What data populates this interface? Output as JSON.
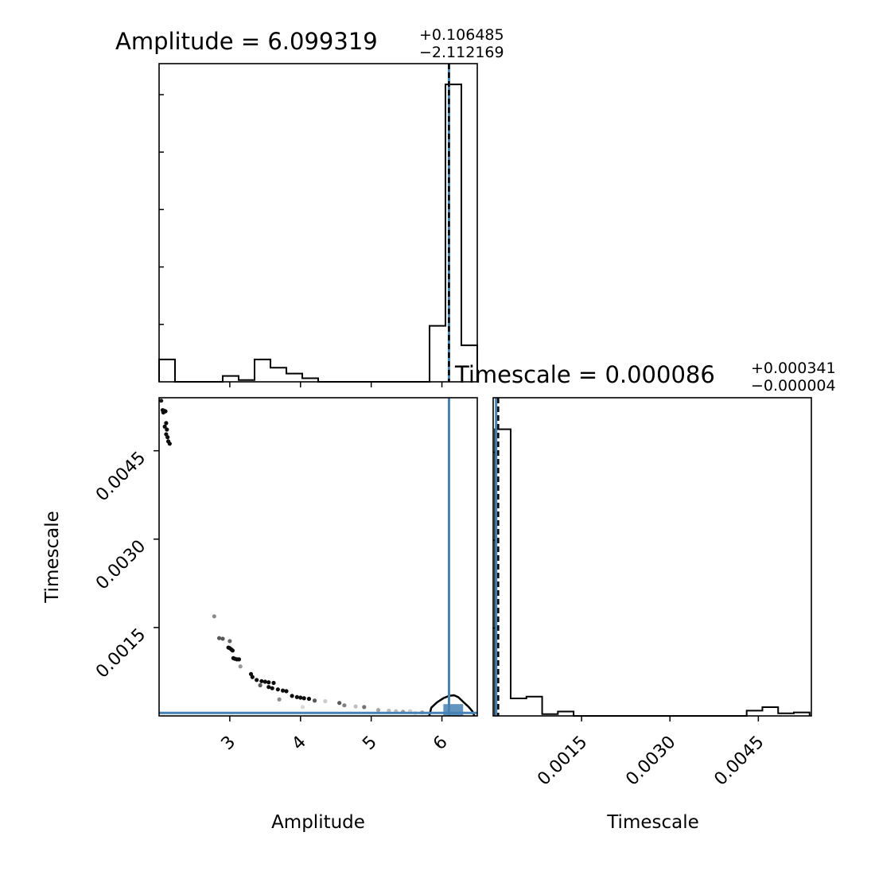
{
  "chart_data": {
    "type": "scatter",
    "figure": "corner-plot",
    "parameters": [
      "Amplitude",
      "Timescale"
    ],
    "colors": {
      "truth_line": "#4682b4",
      "histogram": "#000000",
      "quantile_line": "#000000",
      "frame": "#000000"
    },
    "amplitude_panel": {
      "title": {
        "prefix": "Amplitude = ",
        "value": "6.099319",
        "plus": "+0.106485",
        "minus": "−2.112169"
      },
      "xlim": [
        2.0,
        6.5
      ],
      "truth": 6.1,
      "median": 6.099319,
      "histogram": {
        "type": "step",
        "bin_edges": [
          2.0,
          2.225,
          2.45,
          2.675,
          2.9,
          3.125,
          3.35,
          3.575,
          3.8,
          4.025,
          4.25,
          4.475,
          4.7,
          4.925,
          5.15,
          5.375,
          5.6,
          5.825,
          6.05,
          6.275,
          6.5
        ],
        "counts": [
          0.38,
          0,
          0,
          0,
          0.1,
          0.03,
          0.38,
          0.24,
          0.14,
          0.06,
          0,
          0,
          0,
          0,
          0,
          0,
          0,
          0.95,
          5.05,
          0.62
        ]
      }
    },
    "timescale_panel": {
      "title": {
        "prefix": "Timescale = ",
        "value": "0.000086",
        "plus": "+0.000341",
        "minus": "−0.000004"
      },
      "xlim": [
        0.0,
        0.0054
      ],
      "x_ticks": [
        "0.0015",
        "0.0030",
        "0.0045"
      ],
      "xlabel": "Timescale",
      "truth": 5e-05,
      "median": 8.6e-05,
      "histogram": {
        "type": "step",
        "bin_edges": [
          3e-05,
          0.000297,
          0.000564,
          0.000831,
          0.001098,
          0.001365,
          0.001632,
          0.001899,
          0.002166,
          0.002433,
          0.0027,
          0.002967,
          0.003234,
          0.003501,
          0.003768,
          0.004035,
          0.004302,
          0.004569,
          0.004836,
          0.005103,
          0.00537
        ],
        "counts": [
          3.27,
          0.2,
          0.22,
          0.02,
          0.05,
          0,
          0,
          0,
          0,
          0,
          0,
          0,
          0,
          0,
          0,
          0,
          0.06,
          0.1,
          0.03,
          0.04
        ]
      }
    },
    "joint_panel": {
      "xlabel": "Amplitude",
      "ylabel": "Timescale",
      "xlim": [
        2.0,
        6.5
      ],
      "ylim": [
        0.0,
        0.0054
      ],
      "x_ticks": [
        "3",
        "4",
        "5",
        "6"
      ],
      "y_ticks": [
        "0.0015",
        "0.0030",
        "0.0045"
      ],
      "truth": {
        "x": 6.1,
        "y": 5e-05
      },
      "samples": [
        {
          "x": 2.03,
          "y": 0.00535,
          "shade": 0.1
        },
        {
          "x": 2.05,
          "y": 0.00519,
          "shade": 0.05
        },
        {
          "x": 2.07,
          "y": 0.00518,
          "shade": 0.05
        },
        {
          "x": 2.09,
          "y": 0.00517,
          "shade": 0.05
        },
        {
          "x": 2.06,
          "y": 0.00515,
          "shade": 0.05
        },
        {
          "x": 2.1,
          "y": 0.00497,
          "shade": 0.05
        },
        {
          "x": 2.08,
          "y": 0.00491,
          "shade": 0.05
        },
        {
          "x": 2.11,
          "y": 0.00486,
          "shade": 0.05
        },
        {
          "x": 2.1,
          "y": 0.00478,
          "shade": 0.05
        },
        {
          "x": 2.12,
          "y": 0.00473,
          "shade": 0.05
        },
        {
          "x": 2.13,
          "y": 0.00466,
          "shade": 0.05
        },
        {
          "x": 2.15,
          "y": 0.00462,
          "shade": 0.05
        },
        {
          "x": 2.78,
          "y": 0.00169,
          "shade": 0.55
        },
        {
          "x": 2.85,
          "y": 0.00132,
          "shade": 0.35
        },
        {
          "x": 2.9,
          "y": 0.00131,
          "shade": 0.35
        },
        {
          "x": 3.0,
          "y": 0.00127,
          "shade": 0.4
        },
        {
          "x": 2.98,
          "y": 0.00116,
          "shade": 0.05
        },
        {
          "x": 3.0,
          "y": 0.00115,
          "shade": 0.05
        },
        {
          "x": 3.02,
          "y": 0.00113,
          "shade": 0.05
        },
        {
          "x": 3.04,
          "y": 0.00111,
          "shade": 0.05
        },
        {
          "x": 3.05,
          "y": 0.00098,
          "shade": 0.05
        },
        {
          "x": 3.07,
          "y": 0.00097,
          "shade": 0.05
        },
        {
          "x": 3.1,
          "y": 0.00096,
          "shade": 0.05
        },
        {
          "x": 3.13,
          "y": 0.00096,
          "shade": 0.05
        },
        {
          "x": 3.15,
          "y": 0.00084,
          "shade": 0.6
        },
        {
          "x": 3.3,
          "y": 0.00071,
          "shade": 0.05
        },
        {
          "x": 3.32,
          "y": 0.00066,
          "shade": 0.05
        },
        {
          "x": 3.38,
          "y": 0.00061,
          "shade": 0.05
        },
        {
          "x": 3.45,
          "y": 0.00059,
          "shade": 0.05
        },
        {
          "x": 3.5,
          "y": 0.00058,
          "shade": 0.05
        },
        {
          "x": 3.55,
          "y": 0.00057,
          "shade": 0.05
        },
        {
          "x": 3.62,
          "y": 0.00056,
          "shade": 0.05
        },
        {
          "x": 3.43,
          "y": 0.00052,
          "shade": 0.35
        },
        {
          "x": 3.55,
          "y": 0.00049,
          "shade": 0.05
        },
        {
          "x": 3.6,
          "y": 0.00047,
          "shade": 0.05
        },
        {
          "x": 3.68,
          "y": 0.00045,
          "shade": 0.05
        },
        {
          "x": 3.75,
          "y": 0.00043,
          "shade": 0.05
        },
        {
          "x": 3.8,
          "y": 0.00042,
          "shade": 0.05
        },
        {
          "x": 3.88,
          "y": 0.00034,
          "shade": 0.05
        },
        {
          "x": 3.95,
          "y": 0.00032,
          "shade": 0.05
        },
        {
          "x": 4.0,
          "y": 0.00031,
          "shade": 0.05
        },
        {
          "x": 4.05,
          "y": 0.0003,
          "shade": 0.05
        },
        {
          "x": 4.12,
          "y": 0.00029,
          "shade": 0.05
        },
        {
          "x": 3.7,
          "y": 0.00028,
          "shade": 0.55
        },
        {
          "x": 4.03,
          "y": 0.00015,
          "shade": 0.85
        },
        {
          "x": 4.2,
          "y": 0.00026,
          "shade": 0.35
        },
        {
          "x": 4.35,
          "y": 0.00025,
          "shade": 0.8
        },
        {
          "x": 4.55,
          "y": 0.00022,
          "shade": 0.35
        },
        {
          "x": 4.62,
          "y": 0.00018,
          "shade": 0.5
        },
        {
          "x": 4.78,
          "y": 0.00016,
          "shade": 0.75
        },
        {
          "x": 4.9,
          "y": 0.00015,
          "shade": 0.45
        },
        {
          "x": 5.1,
          "y": 0.0001,
          "shade": 0.65
        },
        {
          "x": 5.25,
          "y": 9e-05,
          "shade": 0.75
        },
        {
          "x": 5.35,
          "y": 8e-05,
          "shade": 0.75
        },
        {
          "x": 5.45,
          "y": 7e-05,
          "shade": 0.6
        },
        {
          "x": 5.55,
          "y": 8e-05,
          "shade": 0.8
        },
        {
          "x": 5.62,
          "y": 5e-05,
          "shade": 0.85
        },
        {
          "x": 5.72,
          "y": 6e-05,
          "shade": 0.65
        }
      ],
      "contour": [
        [
          5.82,
          0.0
        ],
        [
          5.85,
          0.00014
        ],
        [
          5.93,
          0.00023
        ],
        [
          6.02,
          0.0003
        ],
        [
          6.1,
          0.00034
        ],
        [
          6.17,
          0.00035
        ],
        [
          6.23,
          0.00032
        ],
        [
          6.3,
          0.00024
        ],
        [
          6.38,
          0.00015
        ],
        [
          6.43,
          8e-05
        ],
        [
          6.46,
          0.0
        ]
      ],
      "density_core": {
        "x_range": [
          6.02,
          6.3
        ],
        "y_range": [
          0.0,
          0.0002
        ]
      }
    }
  }
}
